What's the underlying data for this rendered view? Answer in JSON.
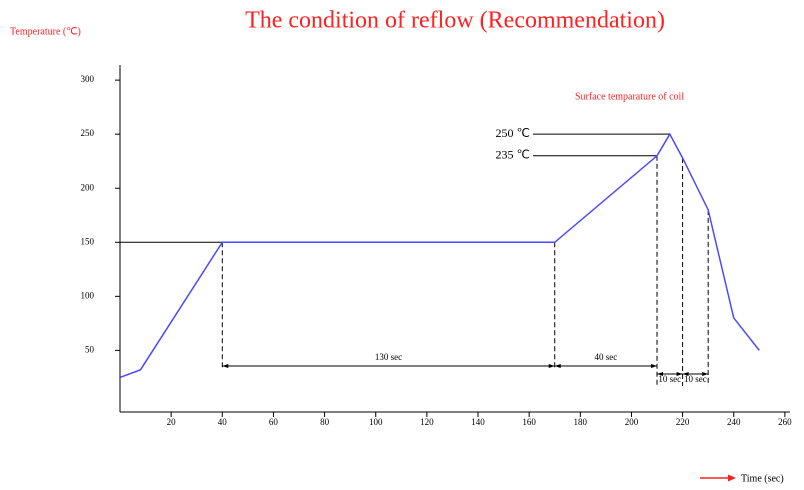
{
  "chart_data": {
    "type": "line",
    "title": "The condition of reflow (Recommendation)",
    "y_label": "Temperature (℃)",
    "x_label": "Time (sec)",
    "series_label": "Surface temparature of coil",
    "x": [
      0,
      8,
      40,
      170,
      210,
      215,
      220,
      230,
      240,
      250
    ],
    "series": [
      {
        "name": "Surface temparature of coil",
        "color": "#4a4aff",
        "values": [
          25,
          32,
          150,
          150,
          230,
          250,
          228,
          180,
          80,
          50
        ]
      }
    ],
    "xlim": [
      0,
      262
    ],
    "xticks": [
      20,
      40,
      60,
      80,
      100,
      120,
      140,
      160,
      180,
      200,
      220,
      240,
      260
    ],
    "ylim": [
      -7,
      314
    ],
    "yticks": [
      50,
      100,
      150,
      200,
      250,
      300
    ],
    "annotations": {
      "peak": "250 ℃",
      "reflow": "235 ℃",
      "preheat": "130 sec",
      "rise": "40 sec",
      "above_reflow_1": "10 sec",
      "above_reflow_2": "10 sec"
    }
  }
}
